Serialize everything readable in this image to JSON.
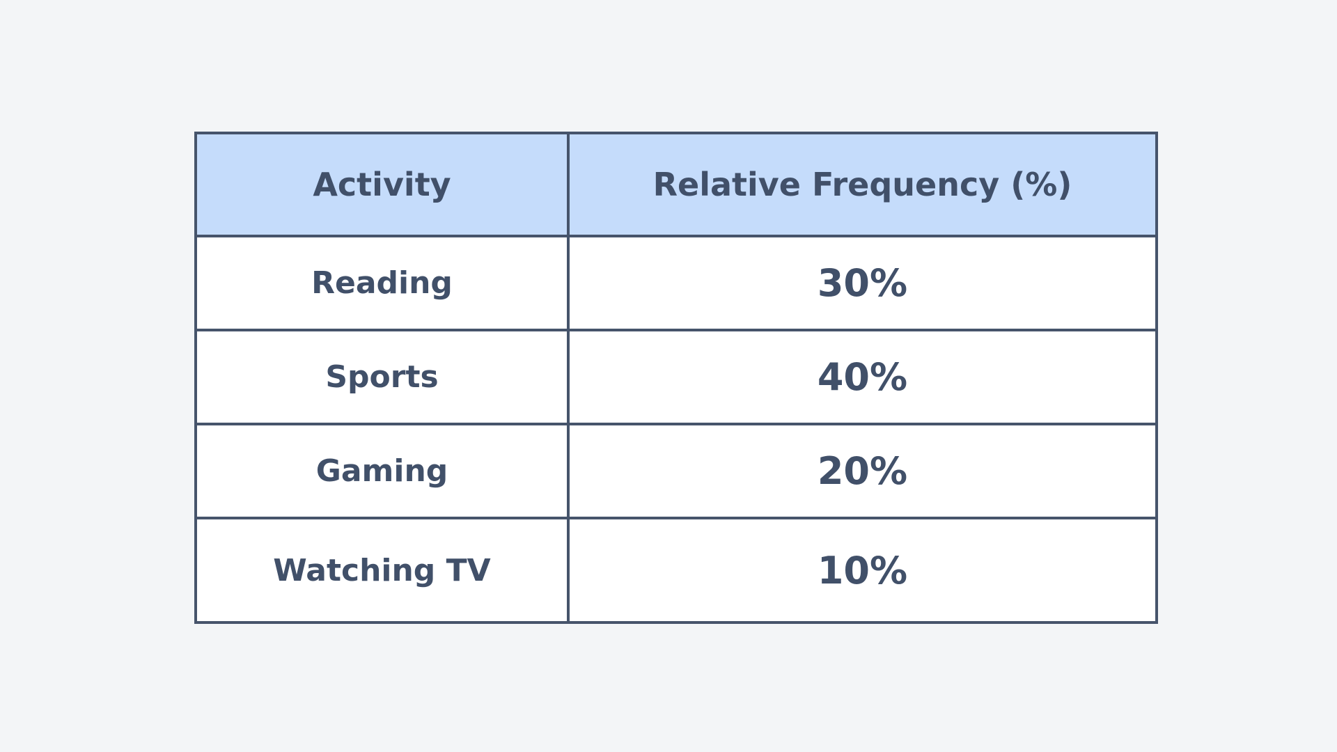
{
  "table": {
    "header": [
      "Activity",
      "Relative Frequency (%)"
    ],
    "rows": [
      [
        "Reading",
        "30%"
      ],
      [
        "Sports",
        "40%"
      ],
      [
        "Gaming",
        "20%"
      ],
      [
        "Watching TV",
        "10%"
      ]
    ]
  }
}
